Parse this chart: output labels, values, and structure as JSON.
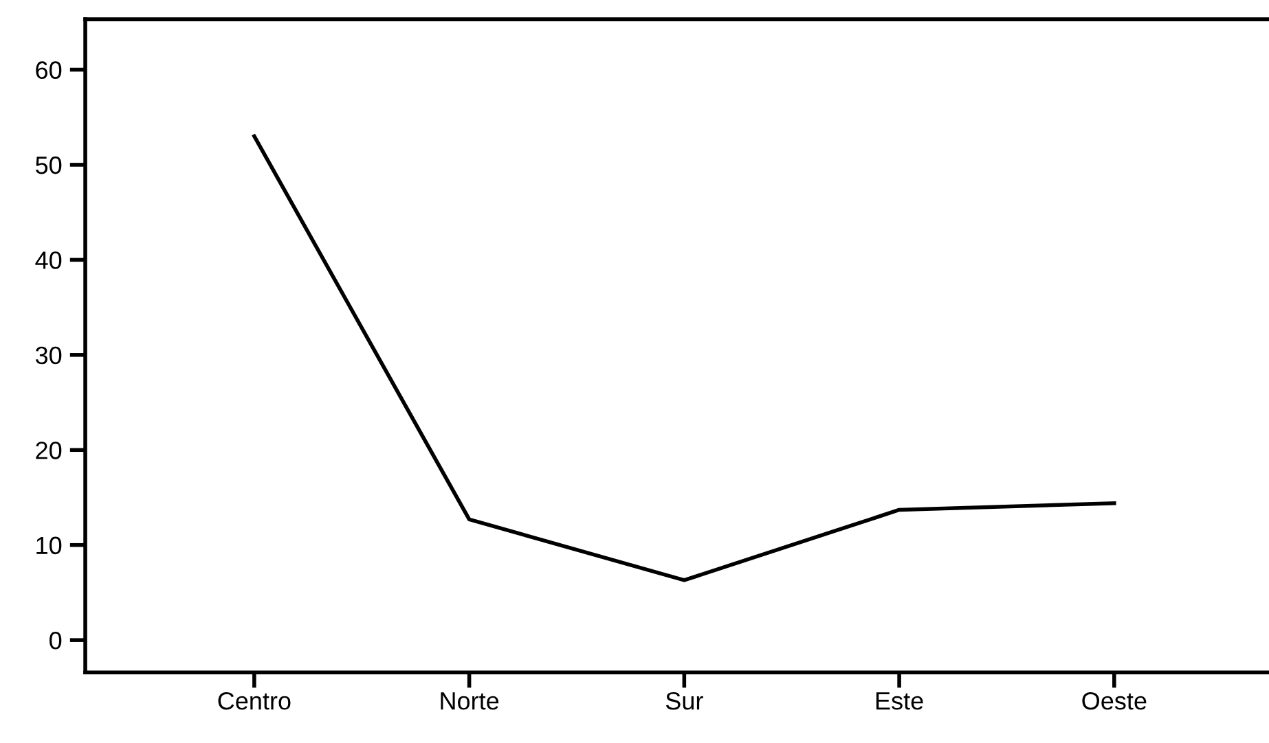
{
  "chart_data": {
    "type": "line",
    "categories": [
      "Centro",
      "Norte",
      "Sur",
      "Este",
      "Oeste"
    ],
    "series": [
      {
        "color": "#000000",
        "values": [
          53.0,
          12.7,
          6.3,
          13.7,
          14.4
        ]
      }
    ],
    "ylim": [
      -3.4,
      65.3
    ],
    "yticks": [
      0,
      10,
      20,
      30,
      40,
      50,
      60
    ],
    "grid": false,
    "legend": false,
    "marker": "none",
    "line_style": "solid"
  }
}
